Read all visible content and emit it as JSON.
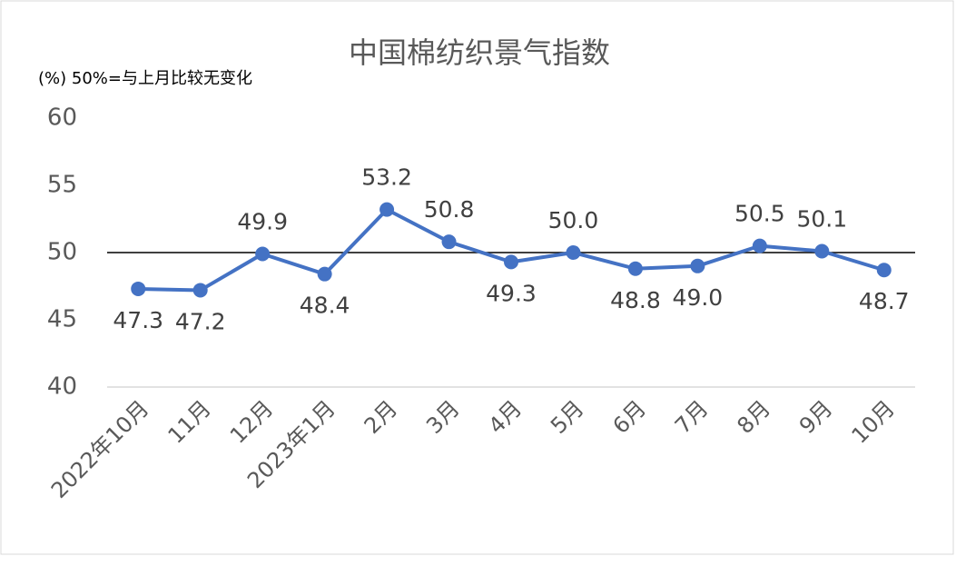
{
  "chart_data": {
    "type": "line",
    "title": "中国棉纺织景气指数",
    "note": "(%)  50%=与上月比较无变化",
    "categories": [
      "2022年10月",
      "11月",
      "12月",
      "2023年1月",
      "2月",
      "3月",
      "4月",
      "5月",
      "6月",
      "7月",
      "8月",
      "9月",
      "10月"
    ],
    "series": [
      {
        "name": "中国棉纺织景气指数",
        "color": "#4472c4",
        "values": [
          47.3,
          47.2,
          49.9,
          48.4,
          53.2,
          50.8,
          49.3,
          50.0,
          48.8,
          49.0,
          50.5,
          50.1,
          48.7
        ],
        "value_labels": [
          "47.3",
          "47.2",
          "49.9",
          "48.4",
          "53.2",
          "50.8",
          "49.3",
          "50.0",
          "48.8",
          "49.0",
          "50.5",
          "50.1",
          "48.7"
        ],
        "label_positions": [
          "below",
          "below",
          "above",
          "below",
          "above",
          "above",
          "below",
          "above",
          "below",
          "below",
          "above",
          "above",
          "below"
        ]
      }
    ],
    "reference_line": 50,
    "ylim": [
      40,
      60
    ],
    "yticks": [
      40,
      45,
      50,
      55,
      60
    ],
    "grid": false,
    "legend": false
  }
}
